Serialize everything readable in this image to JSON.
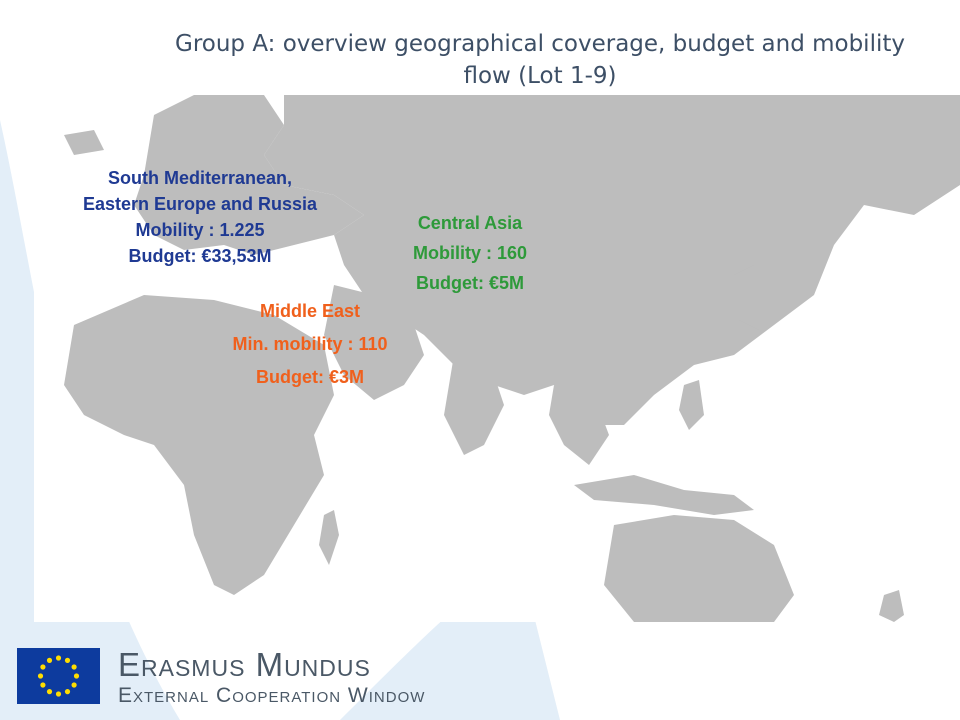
{
  "slide": {
    "title": "Group A: overview geographical coverage, budget and mobility flow (Lot 1-9)"
  },
  "regions": [
    {
      "id": "south-med",
      "color": "#1f3a93",
      "lines": [
        "South Mediterranean,",
        "Eastern Europe and Russia",
        "Mobility : 1.225",
        "Budget: €33,53M"
      ]
    },
    {
      "id": "central-asia",
      "color": "#2e9a3a",
      "lines": [
        "Central Asia",
        "Mobility : 160",
        "Budget: €5M"
      ]
    },
    {
      "id": "middle-east",
      "color": "#f0601c",
      "lines": [
        "Middle East",
        "Min. mobility : 110",
        "Budget: €3M"
      ]
    }
  ],
  "footer": {
    "program_title": "Erasmus Mundus",
    "program_subtitle": "External Cooperation Window"
  },
  "colors": {
    "land": "#bdbdbd",
    "swoosh": "#dbe9f5",
    "eu_flag": "#0d3b9e",
    "eu_stars": "#ffdd00"
  }
}
